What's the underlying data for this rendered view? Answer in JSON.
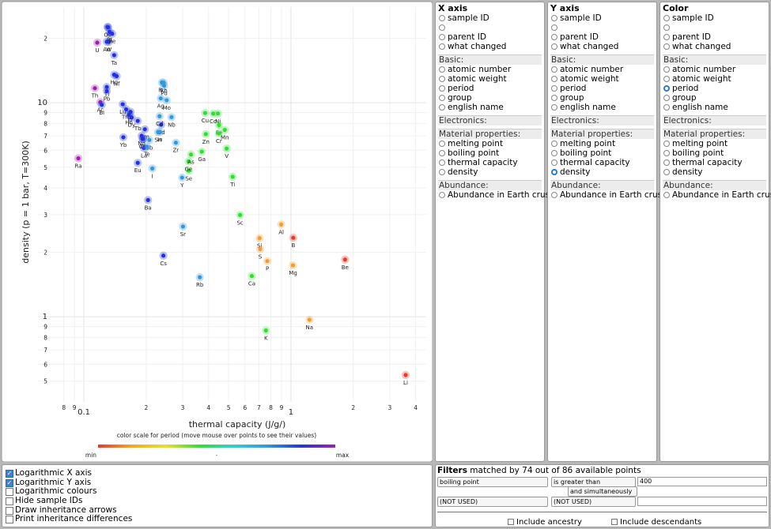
{
  "chart_data": {
    "type": "scatter",
    "x_label": "thermal capacity (J/g/)",
    "y_label": "density (p = 1 bar, T=300K)",
    "labels": [
      "Os",
      "Ir",
      "Pt",
      "Au",
      "W",
      "Re",
      "U",
      "Ta",
      "Hf",
      "Hg",
      "Tl",
      "Pb",
      "Th",
      "Ac",
      "Bi",
      "Lu",
      "Tm",
      "Er",
      "Ho",
      "Dy",
      "Tb",
      "Gd",
      "Yb",
      "Sm",
      "Nd",
      "Pr",
      "Ce",
      "La",
      "Eu",
      "Sb",
      "Sn",
      "Te",
      "I",
      "Ba",
      "Ra",
      "Rh",
      "Ru",
      "Pd",
      "Ag",
      "Mo",
      "Cd",
      "In",
      "Nb",
      "Zr",
      "Y",
      "Sr",
      "Se",
      "Ge",
      "As",
      "Ga",
      "Cs",
      "Rb",
      "Cu",
      "Co",
      "Ni",
      "Zn",
      "Fe",
      "Cr",
      "Mn",
      "V",
      "Ti",
      "Sc",
      "Ca",
      "K",
      "Na",
      "Al",
      "Si",
      "S",
      "P",
      "Mg",
      "B",
      "Be",
      "Li"
    ],
    "x": [
      0.13,
      0.131,
      0.133,
      0.129,
      0.132,
      0.137,
      0.116,
      0.14,
      0.144,
      0.14,
      0.129,
      0.129,
      0.113,
      0.12,
      0.122,
      0.154,
      0.16,
      0.168,
      0.165,
      0.17,
      0.182,
      0.236,
      0.155,
      0.197,
      0.19,
      0.193,
      0.192,
      0.195,
      0.182,
      0.207,
      0.228,
      0.202,
      0.214,
      0.204,
      0.094,
      0.243,
      0.238,
      0.244,
      0.235,
      0.251,
      0.232,
      0.233,
      0.265,
      0.278,
      0.298,
      0.301,
      0.321,
      0.32,
      0.329,
      0.371,
      0.242,
      0.363,
      0.385,
      0.421,
      0.444,
      0.388,
      0.449,
      0.449,
      0.479,
      0.489,
      0.523,
      0.568,
      0.647,
      0.757,
      1.228,
      0.897,
      0.705,
      0.71,
      0.769,
      1.023,
      1.026,
      1.825,
      3.58
    ],
    "values": [
      22.59,
      22.56,
      21.45,
      19.3,
      19.25,
      21.02,
      19.1,
      16.69,
      13.31,
      13.53,
      11.85,
      11.34,
      11.7,
      10.07,
      9.78,
      9.84,
      9.32,
      9.07,
      8.79,
      8.54,
      8.23,
      7.9,
      6.9,
      7.52,
      7.01,
      6.77,
      6.77,
      6.15,
      5.24,
      6.7,
      7.29,
      6.24,
      4.93,
      3.51,
      5.5,
      12.41,
      12.45,
      12.02,
      10.49,
      10.28,
      8.65,
      7.31,
      8.57,
      6.51,
      4.47,
      2.64,
      4.81,
      5.32,
      5.73,
      5.91,
      1.93,
      1.53,
      8.96,
      8.9,
      8.91,
      7.14,
      7.87,
      7.19,
      7.47,
      6.11,
      4.51,
      2.99,
      1.55,
      0.862,
      0.968,
      2.7,
      2.33,
      2.07,
      1.82,
      1.74,
      2.34,
      1.85,
      0.534
    ],
    "colors": [
      "#2233dd",
      "#2233dd",
      "#2233dd",
      "#2233dd",
      "#2233dd",
      "#2233dd",
      "#a020b0",
      "#2233dd",
      "#2233dd",
      "#2233dd",
      "#2233dd",
      "#2233dd",
      "#a020b0",
      "#a020b0",
      "#2233dd",
      "#2233dd",
      "#2233dd",
      "#2233dd",
      "#2233dd",
      "#2233dd",
      "#2233dd",
      "#2233dd",
      "#2233dd",
      "#2233dd",
      "#2233dd",
      "#2233dd",
      "#2233dd",
      "#2233dd",
      "#2233dd",
      "#3399dd",
      "#3399dd",
      "#3399dd",
      "#3399dd",
      "#2233dd",
      "#a020b0",
      "#3399dd",
      "#3399dd",
      "#3399dd",
      "#3399dd",
      "#3399dd",
      "#3399dd",
      "#3399dd",
      "#3399dd",
      "#3399dd",
      "#3399dd",
      "#3399dd",
      "#33dd33",
      "#33dd33",
      "#33dd33",
      "#33dd33",
      "#2233dd",
      "#3399dd",
      "#33dd33",
      "#33dd33",
      "#33dd33",
      "#33dd33",
      "#33dd33",
      "#33dd33",
      "#33dd33",
      "#33dd33",
      "#33dd33",
      "#33dd33",
      "#33dd33",
      "#33dd33",
      "#f0a030",
      "#f0a030",
      "#f0a030",
      "#f0a030",
      "#f0a030",
      "#f0a030",
      "#e83a30",
      "#e83a30",
      "#e83a30"
    ],
    "log_x": true,
    "log_y": true,
    "grid": true,
    "xlim": [
      0.06,
      4.5
    ],
    "xticks": [
      {
        "value": 0.08,
        "label": "8"
      },
      {
        "value": 0.09,
        "label": "9"
      },
      0.1,
      {
        "value": 0.2,
        "label": "2"
      },
      {
        "value": 0.3,
        "label": "3"
      },
      {
        "value": 0.4,
        "label": "4"
      },
      {
        "value": 0.5,
        "label": "5"
      },
      {
        "value": 0.6,
        "label": "6"
      },
      {
        "value": 0.7,
        "label": "7"
      },
      {
        "value": 0.8,
        "label": "8"
      },
      {
        "value": 0.9,
        "label": "9"
      },
      1,
      2,
      3,
      4
    ],
    "ylim": [
      0.4,
      28
    ],
    "yticks": [
      {
        "value": 0.5,
        "label": "5"
      },
      {
        "value": 0.6,
        "label": "6"
      },
      {
        "value": 0.7,
        "label": "7"
      },
      {
        "value": 0.8,
        "label": "8"
      },
      {
        "value": 0.9,
        "label": "9"
      },
      1,
      2,
      3,
      4,
      5,
      6,
      7,
      8,
      9,
      10,
      {
        "value": 20,
        "label": "2"
      }
    ],
    "color_scale": {
      "caption": "color scale for period (move mouse over points to see their values)",
      "min_label": "min",
      "mid_label": ".",
      "max_label": "max",
      "colors": [
        "#e83a30",
        "#f5a623",
        "#e8e030",
        "#33dd33",
        "#30d0d0",
        "#3399dd",
        "#2233dd",
        "#a020b0"
      ]
    }
  },
  "panels": [
    {
      "title": "X axis",
      "selected": [
        2,
        2
      ],
      "groups": [
        {
          "heading": null,
          "options": [
            "sample ID",
            null,
            "parent ID",
            "what changed"
          ]
        },
        {
          "heading": "Basic:",
          "options": [
            "atomic number",
            "atomic weight",
            "period",
            "group",
            "english name"
          ]
        },
        {
          "heading": "Electronics:",
          "options": []
        },
        {
          "heading": "Material properties:",
          "options": [
            "melting point",
            "boiling point",
            "thermal capacity",
            "density"
          ]
        },
        {
          "heading": "Abundance:",
          "options": [
            "Abundance in Earth crust"
          ]
        }
      ]
    },
    {
      "title": "Y axis",
      "selected": [
        3,
        3
      ],
      "groups": [
        {
          "heading": null,
          "options": [
            "sample ID",
            null,
            "parent ID",
            "what changed"
          ]
        },
        {
          "heading": "Basic:",
          "options": [
            "atomic number",
            "atomic weight",
            "period",
            "group",
            "english name"
          ]
        },
        {
          "heading": "Electronics:",
          "options": []
        },
        {
          "heading": "Material properties:",
          "options": [
            "melting point",
            "boiling point",
            "thermal capacity",
            "density"
          ]
        },
        {
          "heading": "Abundance:",
          "options": [
            "Abundance in Earth crust"
          ]
        }
      ]
    },
    {
      "title": "Color",
      "selected": [
        1,
        2
      ],
      "groups": [
        {
          "heading": null,
          "options": [
            "sample ID",
            null,
            "parent ID",
            "what changed"
          ]
        },
        {
          "heading": "Basic:",
          "options": [
            "atomic number",
            "atomic weight",
            "period",
            "group",
            "english name"
          ]
        },
        {
          "heading": "Electronics:",
          "options": []
        },
        {
          "heading": "Material properties:",
          "options": [
            "melting point",
            "boiling point",
            "thermal capacity",
            "density"
          ]
        },
        {
          "heading": "Abundance:",
          "options": [
            "Abundance in Earth crust"
          ]
        }
      ]
    }
  ],
  "options": [
    {
      "label": "Logarithmic X axis",
      "checked": true
    },
    {
      "label": "Logarithmic Y axis",
      "checked": true
    },
    {
      "label": "Logarithmic colours",
      "checked": false
    },
    {
      "label": "Hide sample IDs",
      "checked": false
    },
    {
      "label": "Draw inheritance arrows",
      "checked": false
    },
    {
      "label": "Print inheritance differences",
      "checked": false
    }
  ],
  "filters": {
    "title": "Filters",
    "summary": "matched by 74 out of 86 available points",
    "rows": [
      {
        "field": "boiling point",
        "op": "is greater than",
        "value": "400"
      },
      {
        "field": "(NOT USED)",
        "op": "(NOT USED)",
        "value": null
      }
    ],
    "conjunction": "and simultaneously",
    "include": [
      {
        "label": "Include ancestry",
        "checked": false
      },
      {
        "label": "Include descendants",
        "checked": false
      }
    ]
  }
}
